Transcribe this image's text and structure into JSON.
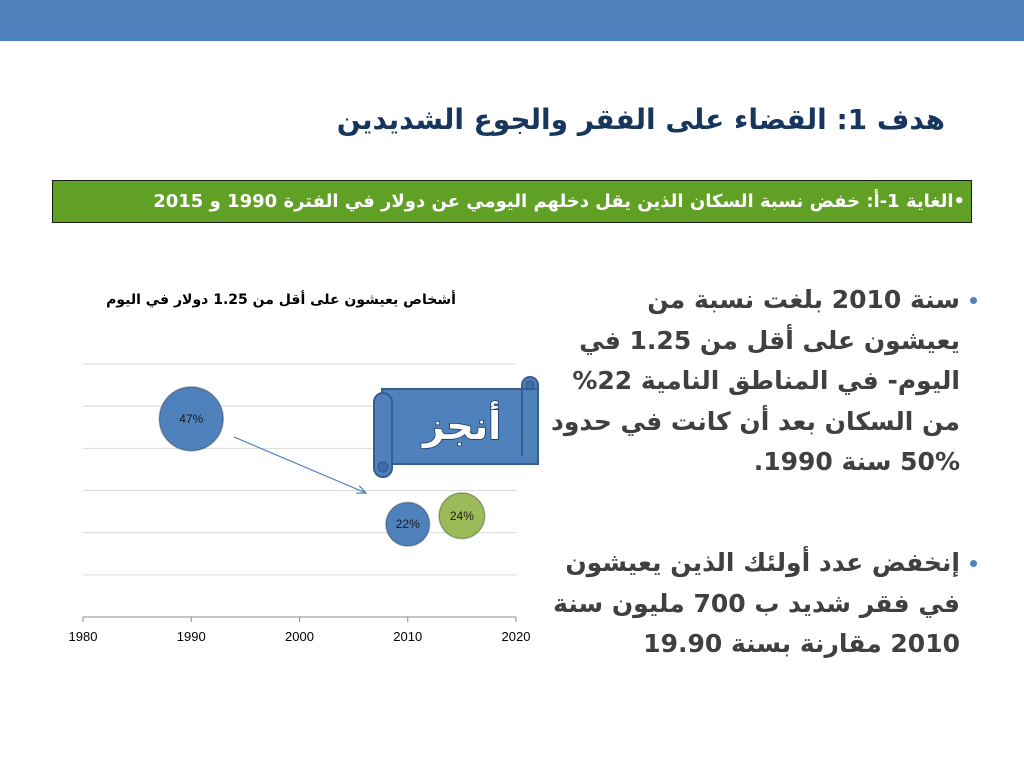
{
  "title": "هدف 1: القضاء على الفقر والجوع الشديدين",
  "target_box": {
    "text": "•الغاية 1-أ: خفض نسبة السكان الذين يقل دخلهم اليومي عن دولار في الفترة 1990 و 2015"
  },
  "banner": {
    "text": "أنجز"
  },
  "bullets": [
    {
      "lines": [
        "سنة 2010 بلغت نسبة من",
        "يعيشون على أقل من 1.25 في",
        "اليوم- في المناطق النامية 22%",
        "من السكان بعد أن كانت في حدود",
        "50% سنة 1990."
      ]
    },
    {
      "lines": [
        "إنخفض عدد أولئك الذين يعيشون",
        "في فقر شديد ب 700 مليون سنة",
        "2010 مقارنة بسنة 19.90"
      ]
    }
  ],
  "chart_data": {
    "type": "scatter",
    "title": "أشخاص يعيشون على أقل من 1.25 دولار في اليوم",
    "xlim": [
      1980,
      2020
    ],
    "ylim": [
      0,
      60
    ],
    "x_ticks": [
      1980,
      1990,
      2000,
      2010,
      2020
    ],
    "grid": true,
    "y_gridlines": [
      10,
      20,
      30,
      40,
      50,
      60
    ],
    "series": [
      {
        "color": "#4f81bd",
        "points": [
          {
            "x": 1990,
            "y": 47,
            "size": 47,
            "label": "47%"
          },
          {
            "x": 2010,
            "y": 22,
            "size": 22,
            "label": "22%"
          }
        ]
      },
      {
        "color": "#9bbb59",
        "points": [
          {
            "x": 2015,
            "y": 24,
            "size": 24,
            "label": "24%"
          }
        ]
      }
    ]
  }
}
